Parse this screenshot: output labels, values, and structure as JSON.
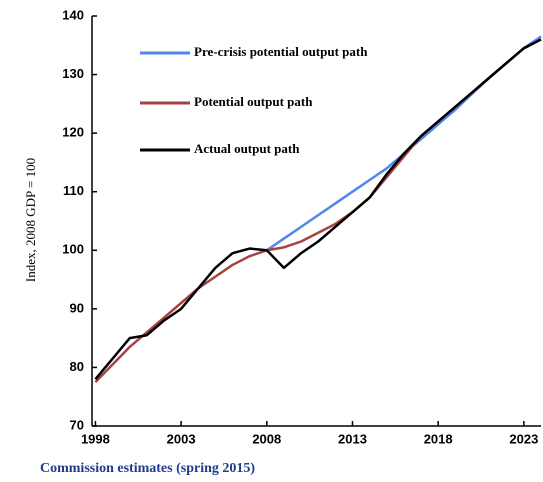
{
  "chart_data": {
    "type": "line",
    "y_label": "Index, 2008 GDP = 100",
    "footer": "Commission estimates (spring 2015)",
    "x": [
      1998,
      1999,
      2000,
      2001,
      2002,
      2003,
      2004,
      2005,
      2006,
      2007,
      2008,
      2009,
      2010,
      2011,
      2012,
      2013,
      2014,
      2015,
      2016,
      2017,
      2018,
      2019,
      2020,
      2021,
      2022,
      2023,
      2024
    ],
    "series": [
      {
        "name": "Pre-crisis potential output path",
        "color": "#4f86f0",
        "values": [
          null,
          null,
          null,
          null,
          null,
          null,
          null,
          null,
          null,
          null,
          100,
          102,
          104,
          106,
          108,
          110,
          112,
          114,
          116.5,
          119,
          121.5,
          124,
          126.8,
          129.5,
          132,
          134.5,
          136.5
        ]
      },
      {
        "name": "Potential output path",
        "color": "#a8423f",
        "values": [
          77.5,
          80.5,
          83.5,
          86,
          88.5,
          91,
          93.5,
          95.5,
          97.5,
          99,
          100,
          100.5,
          101.5,
          103,
          104.5,
          106.5,
          109,
          112.5,
          116,
          119.5,
          122,
          124.5,
          127,
          129.5,
          132,
          134.5,
          136
        ]
      },
      {
        "name": "Actual output path",
        "color": "#000000",
        "values": [
          78,
          81.5,
          85,
          85.5,
          88,
          90,
          93.5,
          97,
          99.5,
          100.3,
          100,
          97,
          99.5,
          101.5,
          104,
          106.5,
          109,
          113,
          116.5,
          119.5,
          122,
          124.5,
          127,
          129.5,
          132,
          134.5,
          136
        ]
      }
    ],
    "xlim": [
      1997.8,
      2024
    ],
    "xticks": [
      1998,
      2003,
      2008,
      2013,
      2018,
      2023
    ],
    "ylim": [
      70,
      140
    ],
    "yticks": [
      70,
      80,
      90,
      100,
      110,
      120,
      130,
      140
    ],
    "legend": "top-left"
  }
}
